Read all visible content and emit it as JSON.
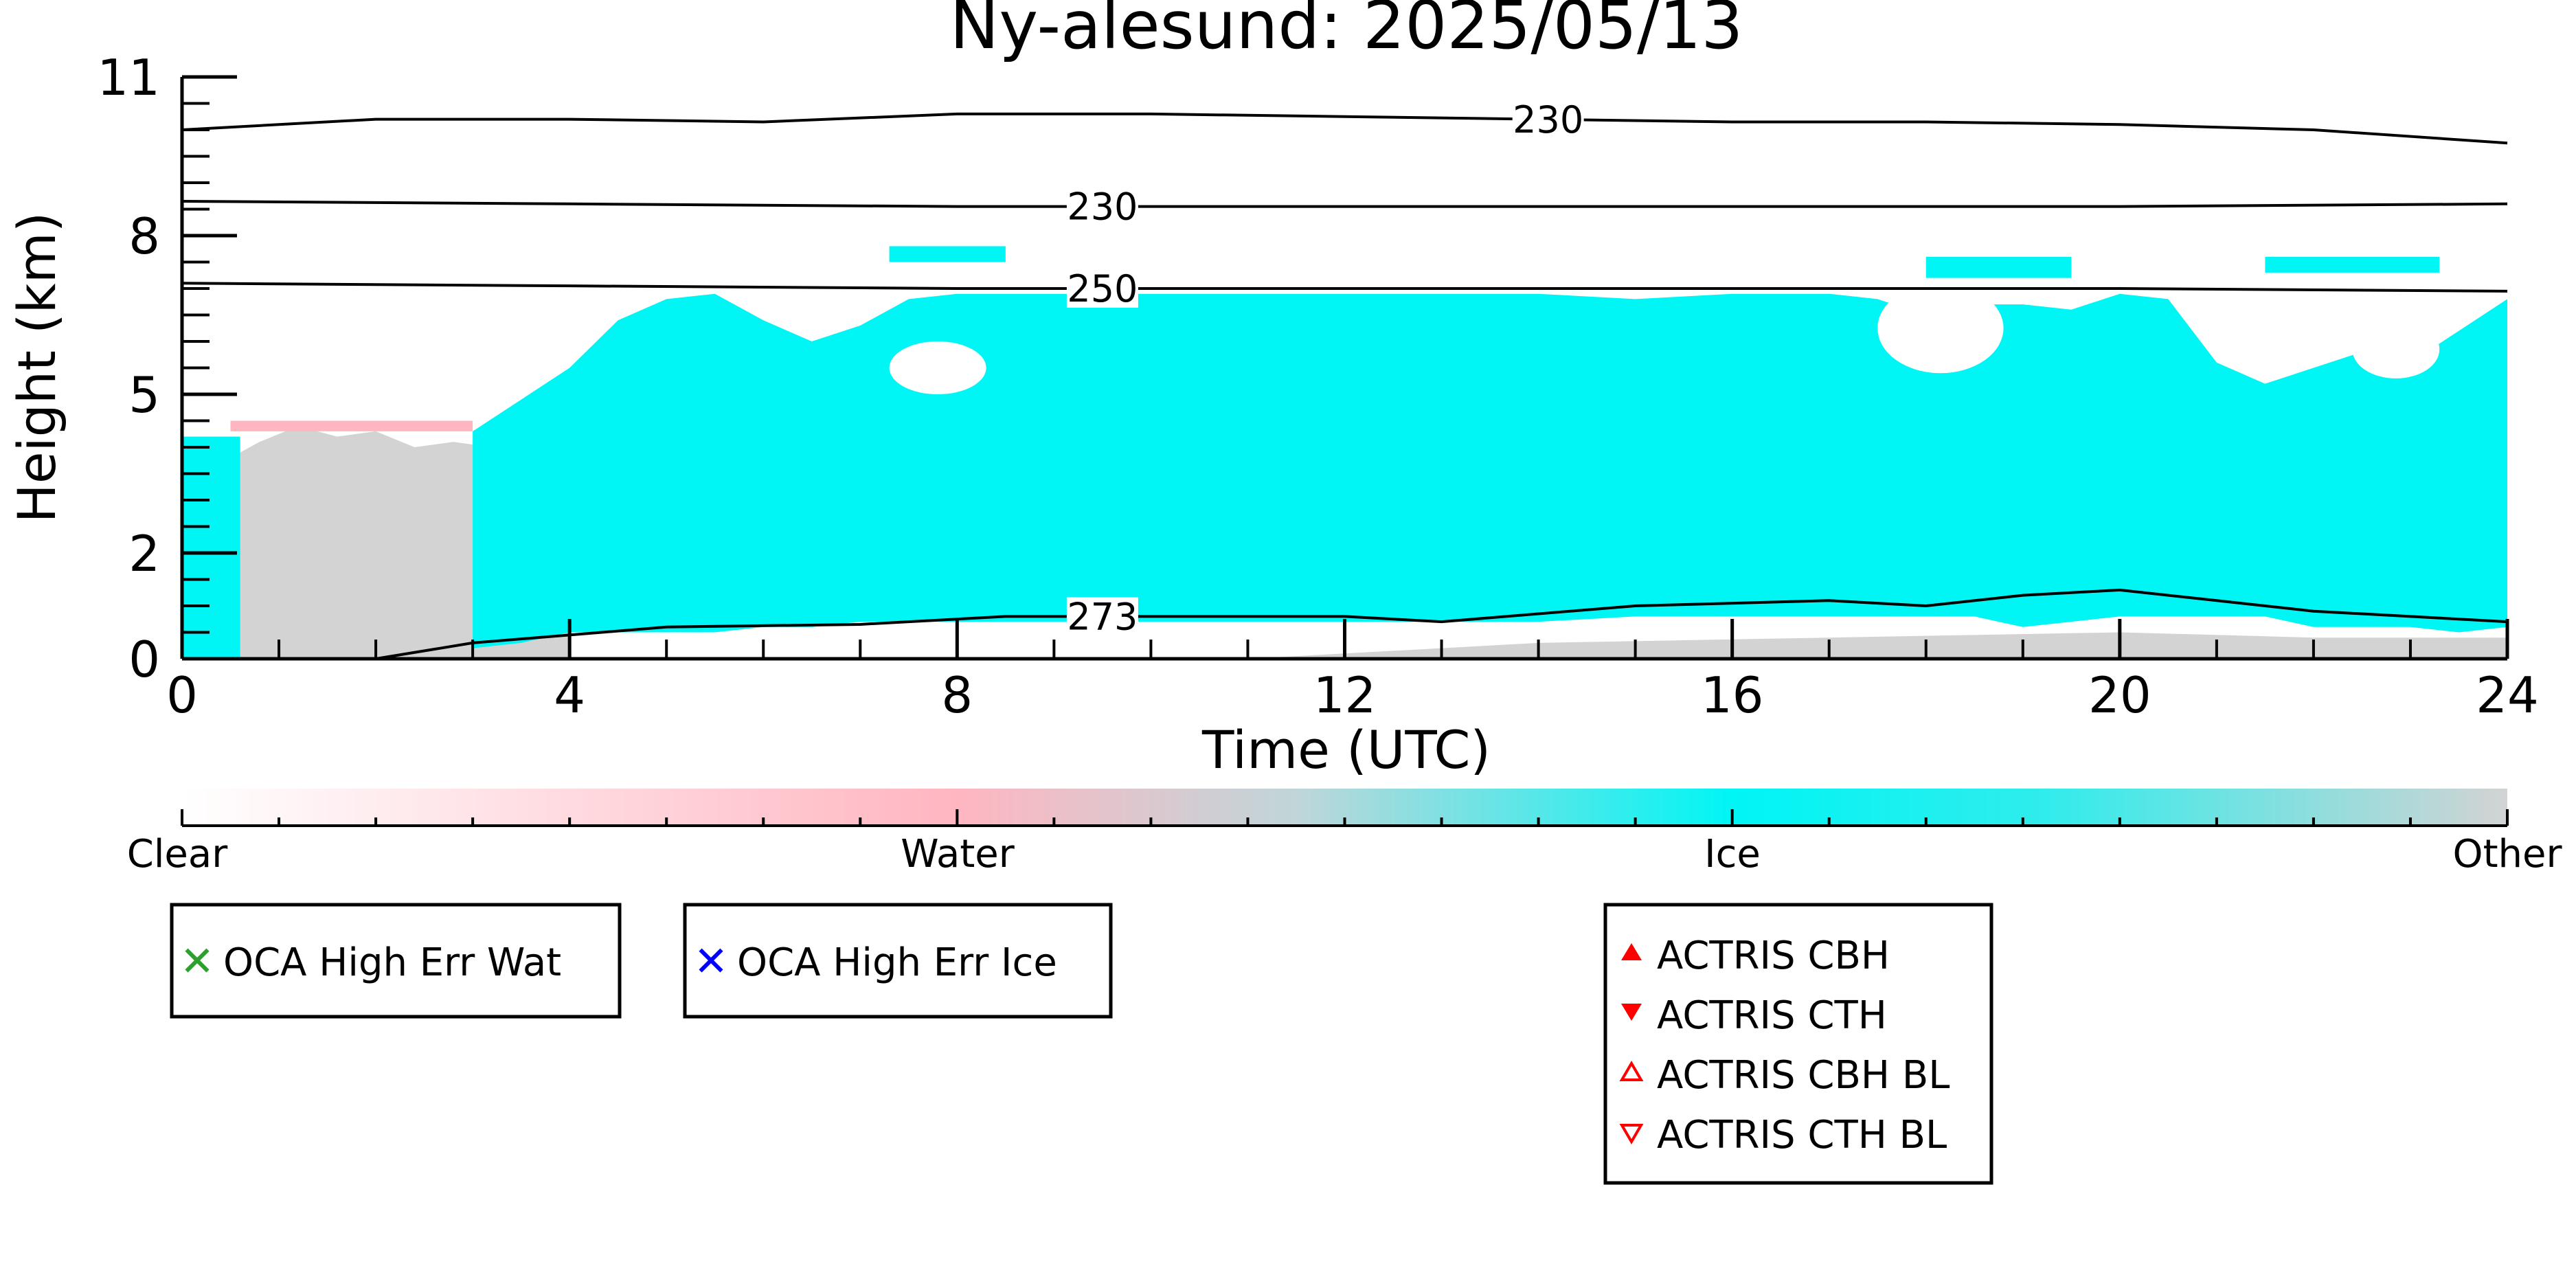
{
  "chart_data": {
    "type": "heatmap",
    "title": "Ny-alesund: 2025/05/13",
    "xlabel": "Time (UTC)",
    "ylabel": "Height (km)",
    "xlim": [
      0,
      24
    ],
    "ylim": [
      0,
      11
    ],
    "x_ticks": [
      {
        "value": 0,
        "label": "0"
      },
      {
        "value": 4,
        "label": "4"
      },
      {
        "value": 8,
        "label": "8"
      },
      {
        "value": 12,
        "label": "12"
      },
      {
        "value": 16,
        "label": "16"
      },
      {
        "value": 20,
        "label": "20"
      },
      {
        "value": 24,
        "label": "24"
      }
    ],
    "y_ticks": [
      {
        "value": 0,
        "label": "0"
      },
      {
        "value": 2,
        "label": "2"
      },
      {
        "value": 5,
        "label": "5"
      },
      {
        "value": 8,
        "label": "8"
      },
      {
        "value": 11,
        "label": "11"
      }
    ],
    "classes": [
      {
        "name": "Clear",
        "color": "#ffffff"
      },
      {
        "name": "Water",
        "color": "#ffb6c1"
      },
      {
        "name": "Ice",
        "color": "#00f5f5"
      },
      {
        "name": "Other",
        "color": "#d3d3d3"
      }
    ],
    "ice_cloud": {
      "x": [
        3.0,
        3.5,
        4.0,
        4.5,
        5.0,
        5.5,
        6.0,
        6.5,
        7.0,
        7.5,
        8.0,
        8.5,
        9.0,
        10.0,
        11.0,
        12.0,
        13.0,
        14.0,
        15.0,
        16.0,
        17.0,
        17.5,
        18.0,
        18.5,
        19.0,
        19.5,
        20.0,
        20.5,
        21.0,
        21.5,
        22.0,
        22.5,
        23.0,
        23.5,
        24.0
      ],
      "top_km": [
        4.3,
        4.9,
        5.5,
        6.4,
        6.8,
        6.9,
        6.4,
        6.0,
        6.3,
        6.8,
        6.9,
        6.9,
        6.9,
        6.9,
        6.9,
        6.9,
        6.9,
        6.9,
        6.8,
        6.9,
        6.9,
        6.8,
        6.5,
        6.7,
        6.7,
        6.6,
        6.9,
        6.8,
        5.6,
        5.2,
        5.5,
        5.8,
        5.6,
        6.2,
        6.8
      ],
      "base_km": [
        0.2,
        0.3,
        0.5,
        0.5,
        0.5,
        0.5,
        0.6,
        0.6,
        0.7,
        0.7,
        0.7,
        0.7,
        0.7,
        0.7,
        0.7,
        0.7,
        0.7,
        0.7,
        0.8,
        0.8,
        0.8,
        0.8,
        0.8,
        0.8,
        0.6,
        0.7,
        0.8,
        0.8,
        0.8,
        0.8,
        0.6,
        0.6,
        0.6,
        0.5,
        0.6
      ]
    },
    "ice_patches": [
      {
        "x": [
          7.3,
          8.5
        ],
        "y_km": [
          7.5,
          7.8
        ]
      },
      {
        "x": [
          18.0,
          19.5
        ],
        "y_km": [
          7.2,
          7.6
        ]
      },
      {
        "x": [
          21.5,
          23.3
        ],
        "y_km": [
          7.3,
          7.6
        ]
      },
      {
        "x": [
          0.0,
          0.6
        ],
        "y_km": [
          0.0,
          4.2
        ]
      }
    ],
    "clear_holes": [
      {
        "x": [
          7.3,
          8.3
        ],
        "y_km": [
          5.0,
          6.0
        ]
      },
      {
        "x": [
          17.5,
          18.8
        ],
        "y_km": [
          5.4,
          7.1
        ]
      },
      {
        "x": [
          22.4,
          23.3
        ],
        "y_km": [
          5.3,
          6.4
        ]
      }
    ],
    "other_region": {
      "x": [
        0.5,
        0.8,
        1.2,
        1.6,
        2.0,
        2.4,
        2.8,
        3.2,
        3.6,
        4.0
      ],
      "top_km": [
        3.8,
        4.1,
        4.4,
        4.2,
        4.3,
        4.0,
        4.1,
        4.0,
        1.8,
        0.5
      ]
    },
    "surface_other": {
      "x": [
        11.0,
        14.0,
        17.0,
        20.0,
        22.0,
        24.0
      ],
      "top_km": [
        0.0,
        0.3,
        0.4,
        0.5,
        0.4,
        0.4
      ]
    },
    "water_streak": {
      "x": [
        0.5,
        3.0
      ],
      "y_km": [
        4.3,
        4.5
      ]
    },
    "isotherms": [
      {
        "label": "230",
        "label_x": 14.1,
        "x": [
          0,
          2,
          4,
          6,
          8,
          10,
          12,
          14,
          16,
          18,
          20,
          22,
          24
        ],
        "y_km": [
          10.0,
          10.2,
          10.2,
          10.15,
          10.3,
          10.3,
          10.25,
          10.2,
          10.15,
          10.15,
          10.1,
          10.0,
          9.75
        ]
      },
      {
        "label": "230",
        "label_x": 9.5,
        "x": [
          0,
          4,
          8,
          12,
          16,
          20,
          24
        ],
        "y_km": [
          8.65,
          8.6,
          8.55,
          8.55,
          8.55,
          8.55,
          8.6
        ]
      },
      {
        "label": "250",
        "label_x": 9.5,
        "x": [
          0,
          4,
          8,
          12,
          16,
          20,
          24
        ],
        "y_km": [
          7.1,
          7.05,
          7.0,
          7.0,
          7.0,
          7.0,
          6.95
        ]
      },
      {
        "label": "273",
        "label_x": 9.5,
        "x": [
          2.0,
          3.0,
          4.0,
          5.0,
          7.0,
          8.5,
          10.0,
          11.0,
          12.0,
          13.0,
          15.0,
          17.0,
          18.0,
          19.0,
          20.0,
          21.0,
          22.0,
          23.0,
          24.0
        ],
        "y_km": [
          0.0,
          0.3,
          0.45,
          0.6,
          0.65,
          0.8,
          0.8,
          0.8,
          0.8,
          0.7,
          1.0,
          1.1,
          1.0,
          1.2,
          1.3,
          1.1,
          0.9,
          0.8,
          0.7
        ]
      }
    ]
  },
  "colorbar": {
    "labels": [
      "Clear",
      "Water",
      "Ice",
      "Other"
    ]
  },
  "legends": {
    "oca": [
      {
        "label": "OCA High Err Wat",
        "marker": "x",
        "color": "#2ca02c"
      },
      {
        "label": "OCA High Err Ice",
        "marker": "x",
        "color": "#0000ff"
      }
    ],
    "actris": [
      {
        "label": "ACTRIS CBH",
        "marker": "triangle-up-filled",
        "color": "#ff0000"
      },
      {
        "label": "ACTRIS CTH",
        "marker": "triangle-down-filled",
        "color": "#ff0000"
      },
      {
        "label": "ACTRIS CBH BL",
        "marker": "triangle-up-open",
        "color": "#ff0000"
      },
      {
        "label": "ACTRIS CTH BL",
        "marker": "triangle-down-open",
        "color": "#ff0000"
      }
    ]
  }
}
